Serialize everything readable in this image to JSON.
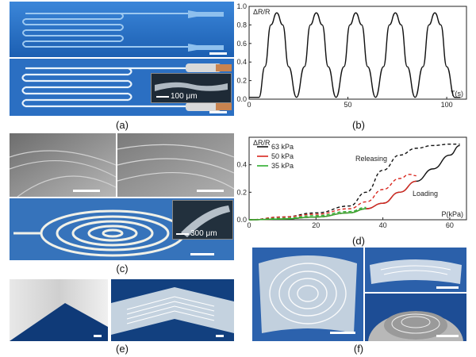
{
  "labels": {
    "a": "(a)",
    "b": "(b)",
    "c": "(c)",
    "d": "(d)",
    "e": "(e)",
    "f": "(f)"
  },
  "insets": {
    "a_scale": "100 μm",
    "c_scale": "300 μm"
  },
  "chart_data": [
    {
      "type": "line",
      "panel": "b",
      "title": "",
      "xlabel": "T(s)",
      "ylabel": "ΔR/R",
      "xlim": [
        0,
        110
      ],
      "ylim": [
        0,
        1.0
      ],
      "x_ticks": [
        0,
        50,
        100
      ],
      "y_ticks": [
        0.0,
        0.2,
        0.4,
        0.6,
        0.8,
        1.0
      ],
      "grid": false,
      "series": [
        {
          "name": "",
          "description_period_s": 20,
          "peaks_at_s": [
            14,
            34,
            54,
            74,
            94
          ],
          "peak_value": 0.93,
          "baseline_value": 0.02,
          "x": [
            0,
            5,
            8,
            11,
            14,
            17,
            20,
            24,
            28,
            31,
            34,
            37,
            40,
            44,
            48,
            51,
            54,
            57,
            60,
            64,
            68,
            71,
            74,
            77,
            80,
            84,
            88,
            91,
            94,
            97,
            100,
            104,
            107
          ],
          "y": [
            0.02,
            0.02,
            0.35,
            0.8,
            0.93,
            0.8,
            0.35,
            0.02,
            0.35,
            0.8,
            0.93,
            0.8,
            0.35,
            0.02,
            0.35,
            0.8,
            0.93,
            0.8,
            0.35,
            0.02,
            0.35,
            0.8,
            0.93,
            0.8,
            0.35,
            0.02,
            0.35,
            0.8,
            0.93,
            0.8,
            0.35,
            0.02,
            0.02
          ]
        }
      ]
    },
    {
      "type": "line",
      "panel": "d",
      "title": "",
      "xlabel": "P(kPa)",
      "ylabel": "ΔR/R",
      "xlim": [
        0,
        65
      ],
      "ylim": [
        0,
        0.6
      ],
      "x_ticks": [
        0,
        20,
        40,
        60
      ],
      "y_ticks": [
        0.0,
        0.2,
        0.4
      ],
      "grid": false,
      "legend": "top-left",
      "annotations": [
        "Releasing",
        "Loading"
      ],
      "series": [
        {
          "name": "63 kPa",
          "color": "#111111",
          "style": "solid",
          "x": [
            0,
            10,
            20,
            30,
            35,
            40,
            45,
            50,
            55,
            60,
            63
          ],
          "y": [
            0.0,
            0.005,
            0.02,
            0.05,
            0.08,
            0.12,
            0.2,
            0.28,
            0.37,
            0.47,
            0.54
          ]
        },
        {
          "name": "63 kPa releasing",
          "color": "#111111",
          "style": "dashed",
          "x": [
            0,
            10,
            20,
            30,
            35,
            40,
            45,
            50,
            55,
            60,
            63
          ],
          "y": [
            0.0,
            0.02,
            0.05,
            0.1,
            0.2,
            0.36,
            0.47,
            0.52,
            0.54,
            0.55,
            0.55
          ]
        },
        {
          "name": "50 kPa",
          "color": "#d8271e",
          "style": "solid",
          "x": [
            0,
            10,
            20,
            30,
            35,
            40,
            45,
            50
          ],
          "y": [
            0.0,
            0.005,
            0.02,
            0.05,
            0.08,
            0.12,
            0.2,
            0.28
          ]
        },
        {
          "name": "50 kPa releasing",
          "color": "#d8271e",
          "style": "dashed",
          "x": [
            0,
            10,
            20,
            30,
            35,
            40,
            45,
            48,
            50
          ],
          "y": [
            0.0,
            0.02,
            0.04,
            0.08,
            0.13,
            0.22,
            0.3,
            0.33,
            0.32
          ]
        },
        {
          "name": "35 kPa",
          "color": "#2fae2f",
          "style": "solid",
          "x": [
            0,
            10,
            20,
            30,
            35
          ],
          "y": [
            0.0,
            0.005,
            0.02,
            0.05,
            0.08
          ]
        },
        {
          "name": "35 kPa releasing",
          "color": "#2fae2f",
          "style": "dashed",
          "x": [
            0,
            10,
            20,
            30,
            35
          ],
          "y": [
            0.0,
            0.01,
            0.03,
            0.06,
            0.09
          ]
        }
      ]
    }
  ]
}
